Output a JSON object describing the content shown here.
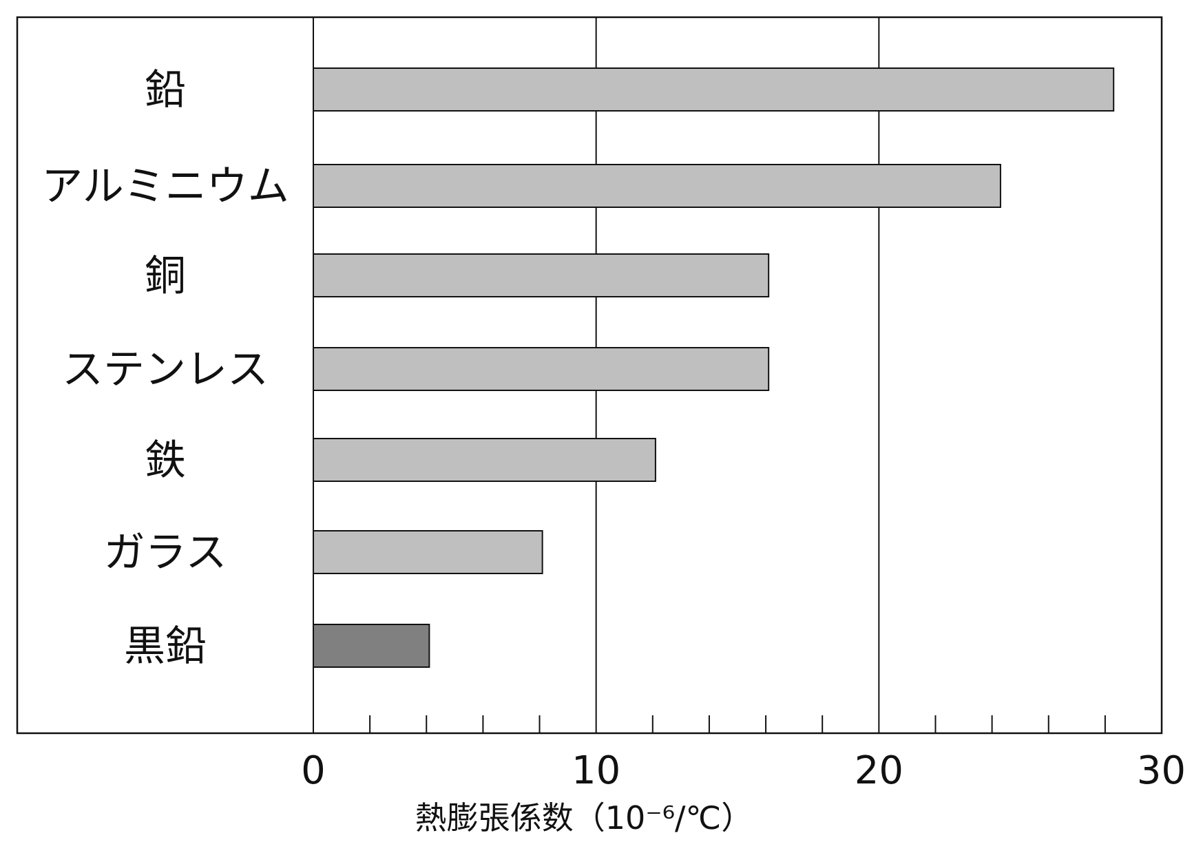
{
  "chart_data": {
    "type": "bar",
    "orientation": "horizontal",
    "categories": [
      "鉛",
      "アルミニウム",
      "銅",
      "ステンレス",
      "鉄",
      "ガラス",
      "黒鉛"
    ],
    "values": [
      28.3,
      24.3,
      16.1,
      16.1,
      12.1,
      8.1,
      4.1
    ],
    "colors": [
      "#bfbfbf",
      "#bfbfbf",
      "#bfbfbf",
      "#bfbfbf",
      "#bfbfbf",
      "#bfbfbf",
      "#808080"
    ],
    "xlabel": "熱膨張係数（10⁻⁶/℃）",
    "xticks": [
      "0",
      "10",
      "20",
      "30"
    ],
    "xlim": [
      0,
      30
    ],
    "minor_tick_step": 2,
    "grid": "vertical major lines at 10, 20",
    "legend": "none"
  }
}
